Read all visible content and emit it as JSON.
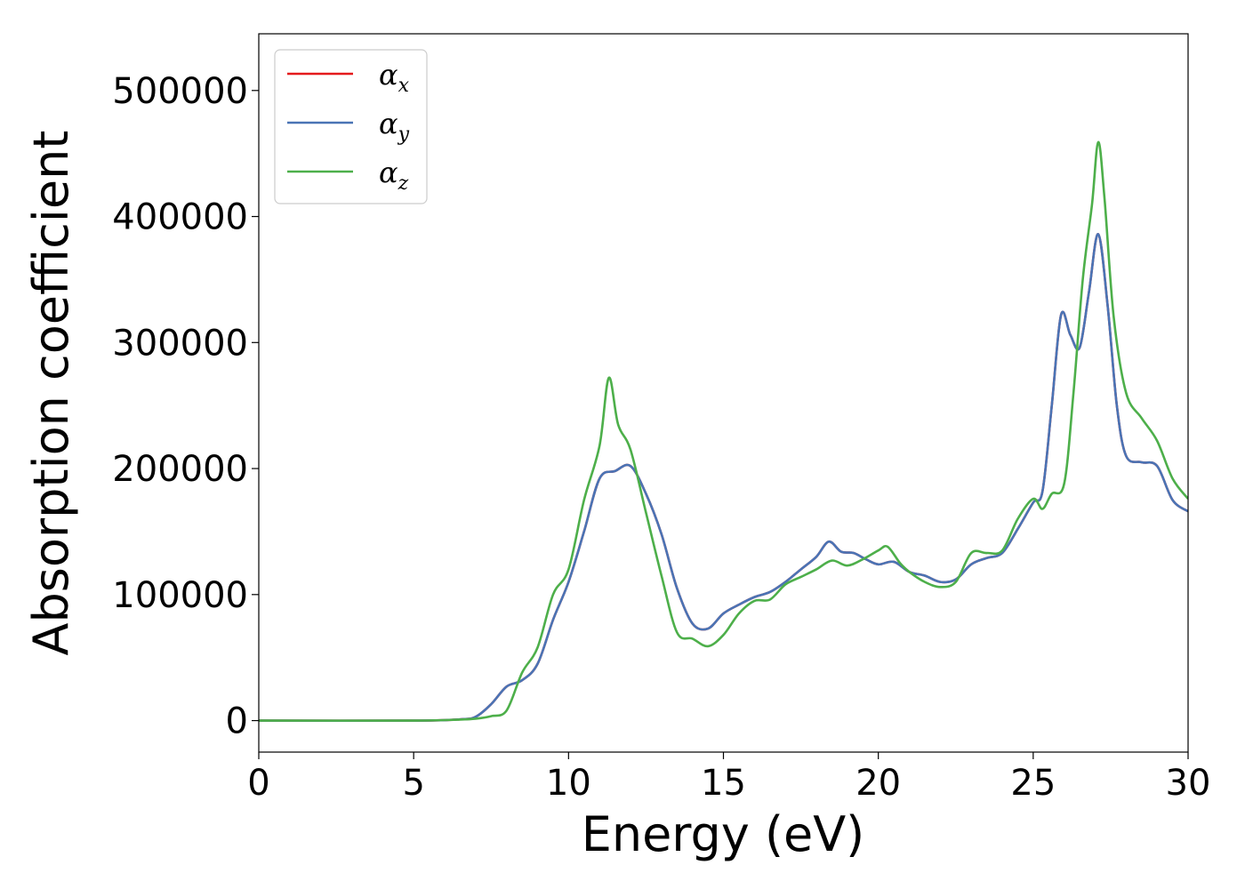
{
  "chart_data": {
    "type": "line",
    "xlabel": "Energy (eV)",
    "ylabel": "Absorption coefficient",
    "xlim": [
      0,
      30
    ],
    "ylim": [
      -25000,
      545000
    ],
    "xticks": [
      "0",
      "5",
      "10",
      "15",
      "20",
      "25",
      "30"
    ],
    "xtick_values": [
      0,
      5,
      10,
      15,
      20,
      25,
      30
    ],
    "yticks": [
      "0",
      "100000",
      "200000",
      "300000",
      "400000",
      "500000"
    ],
    "ytick_values": [
      0,
      100000,
      200000,
      300000,
      400000,
      500000
    ],
    "grid": false,
    "legend_position": "top-left",
    "series": [
      {
        "name": "α_x",
        "legend_base": "α",
        "legend_sub": "x",
        "color": "#e41a1c",
        "x": [
          0,
          5,
          6.5,
          7,
          7.5,
          8,
          8.5,
          9,
          9.5,
          10,
          10.5,
          11,
          11.5,
          12,
          12.5,
          13,
          13.5,
          14,
          14.5,
          15,
          15.5,
          16,
          16.5,
          17,
          17.5,
          18,
          18.4,
          18.8,
          19.2,
          19.6,
          20,
          20.5,
          21,
          21.5,
          22,
          22.5,
          23,
          23.5,
          24,
          24.5,
          25,
          25.3,
          25.6,
          25.9,
          26.2,
          26.5,
          26.8,
          27.1,
          27.4,
          27.7,
          28,
          28.5,
          29,
          29.5,
          30
        ],
        "y": [
          0,
          0,
          1000,
          3000,
          13000,
          27000,
          32000,
          45000,
          80000,
          110000,
          150000,
          192000,
          198000,
          202000,
          180000,
          148000,
          105000,
          77000,
          73000,
          85000,
          92000,
          98000,
          102000,
          110000,
          120000,
          130000,
          142000,
          134000,
          133000,
          128000,
          124000,
          126000,
          118000,
          115000,
          110000,
          112000,
          124000,
          129000,
          133000,
          152000,
          173000,
          182000,
          250000,
          322000,
          306000,
          296000,
          340000,
          386000,
          330000,
          250000,
          210000,
          205000,
          202000,
          175000,
          166000
        ]
      },
      {
        "name": "α_y",
        "legend_base": "α",
        "legend_sub": "y",
        "color": "#4a74b5",
        "x": [
          0,
          5,
          6.5,
          7,
          7.5,
          8,
          8.5,
          9,
          9.5,
          10,
          10.5,
          11,
          11.5,
          12,
          12.5,
          13,
          13.5,
          14,
          14.5,
          15,
          15.5,
          16,
          16.5,
          17,
          17.5,
          18,
          18.4,
          18.8,
          19.2,
          19.6,
          20,
          20.5,
          21,
          21.5,
          22,
          22.5,
          23,
          23.5,
          24,
          24.5,
          25,
          25.3,
          25.6,
          25.9,
          26.2,
          26.5,
          26.8,
          27.1,
          27.4,
          27.7,
          28,
          28.5,
          29,
          29.5,
          30
        ],
        "y": [
          0,
          0,
          1000,
          3000,
          13000,
          27000,
          32000,
          45000,
          80000,
          110000,
          150000,
          192000,
          198000,
          202000,
          180000,
          148000,
          105000,
          77000,
          73000,
          85000,
          92000,
          98000,
          102000,
          110000,
          120000,
          130000,
          142000,
          134000,
          133000,
          128000,
          124000,
          126000,
          118000,
          115000,
          110000,
          112000,
          124000,
          129000,
          133000,
          152000,
          173000,
          182000,
          250000,
          322000,
          306000,
          296000,
          340000,
          386000,
          330000,
          250000,
          210000,
          205000,
          202000,
          175000,
          166000
        ]
      },
      {
        "name": "α_z",
        "legend_base": "α",
        "legend_sub": "z",
        "color": "#4daf4a",
        "x": [
          0,
          5,
          6.5,
          7,
          7.5,
          8,
          8.5,
          9,
          9.5,
          10,
          10.5,
          11,
          11.3,
          11.6,
          12,
          12.5,
          13,
          13.5,
          14,
          14.5,
          15,
          15.5,
          16,
          16.5,
          17,
          17.5,
          18,
          18.5,
          19,
          19.5,
          20,
          20.3,
          20.7,
          21,
          21.5,
          22,
          22.5,
          23,
          23.5,
          24,
          24.5,
          25,
          25.3,
          25.6,
          26,
          26.3,
          26.6,
          26.9,
          27.1,
          27.3,
          27.6,
          28,
          28.5,
          29,
          29.5,
          30
        ],
        "y": [
          0,
          0,
          800,
          1500,
          3500,
          8000,
          38000,
          58000,
          100000,
          120000,
          175000,
          218000,
          272000,
          235000,
          215000,
          165000,
          115000,
          70000,
          65000,
          59000,
          68000,
          85000,
          95000,
          96000,
          108000,
          114000,
          120000,
          127000,
          123000,
          128000,
          135000,
          138000,
          125000,
          118000,
          110000,
          106000,
          110000,
          133000,
          133000,
          135000,
          160000,
          176000,
          168000,
          180000,
          188000,
          260000,
          350000,
          410000,
          459000,
          415000,
          320000,
          260000,
          240000,
          222000,
          192000,
          176000
        ]
      }
    ]
  }
}
